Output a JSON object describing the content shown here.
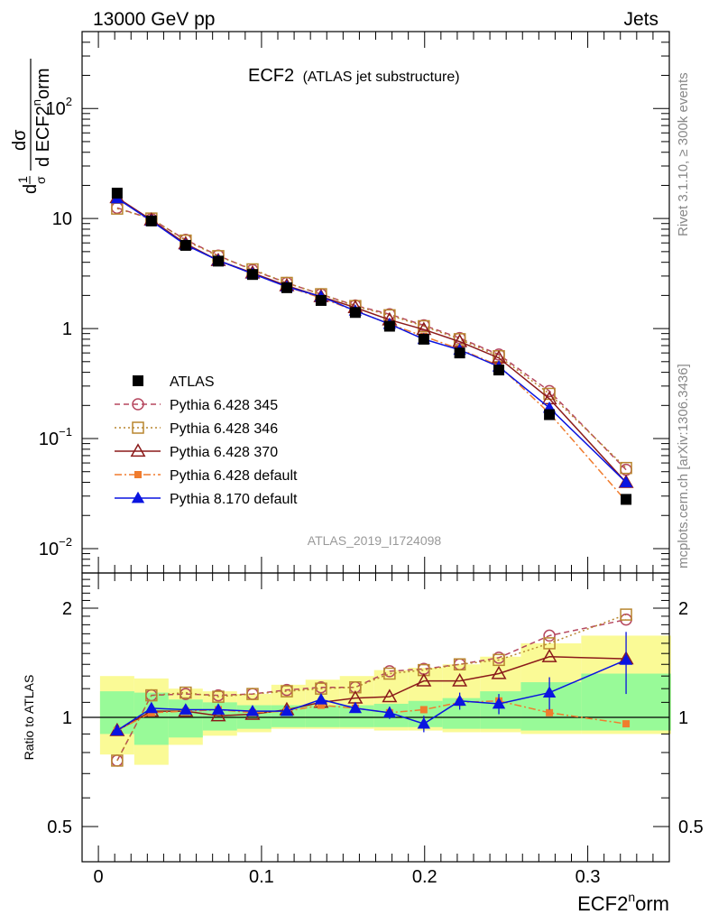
{
  "header": {
    "left": "13000 GeV pp",
    "right": "Jets"
  },
  "plot_title": {
    "main": "ECF2",
    "sub": "(ATLAS jet substructure)"
  },
  "analysis_id": "ATLAS_2019_I1724098",
  "side_labels": {
    "rivet": "Rivet 3.1.10, ≥ 300k events",
    "mcplots": "mcplots.cern.ch [arXiv:1306.3436]"
  },
  "chart_data": [
    {
      "type": "scatter",
      "panel": "main",
      "ylabel": "1/σ dσ/d ECF2^norm",
      "ylabel_parts": {
        "d": "d",
        "one": "1",
        "sigma": "σ",
        "dsigma": "dσ",
        "dvar": "d ECF2",
        "sup": "n",
        "tail": "orm"
      },
      "yscale": "log",
      "ylim": [
        0.006,
        500
      ],
      "xlim": [
        -0.01,
        0.35
      ],
      "y_tick_labels": [
        {
          "value": 0.01,
          "base": "10",
          "exp": "−2"
        },
        {
          "value": 0.1,
          "base": "10",
          "exp": "−1"
        },
        {
          "value": 1,
          "base": "1",
          "exp": ""
        },
        {
          "value": 10,
          "base": "10",
          "exp": ""
        },
        {
          "value": 100,
          "base": "10",
          "exp": "2"
        }
      ],
      "legend_position": "center-left",
      "series": [
        {
          "name": "ATLAS",
          "color": "#000000",
          "marker": "square-filled",
          "x": [
            0.0115,
            0.0325,
            0.0535,
            0.0735,
            0.0945,
            0.1155,
            0.1365,
            0.1575,
            0.1785,
            0.1995,
            0.2215,
            0.2455,
            0.2765,
            0.3235
          ],
          "y": [
            17.0,
            9.5,
            5.7,
            4.1,
            3.1,
            2.35,
            1.8,
            1.4,
            1.05,
            0.8,
            0.6,
            0.42,
            0.165,
            0.028
          ]
        },
        {
          "name": "Pythia 6.428 345",
          "color": "#b5475f",
          "marker": "circle-open",
          "line": "dashed",
          "x": [
            0.0115,
            0.0325,
            0.0535,
            0.0735,
            0.0945,
            0.1155,
            0.1365,
            0.1575,
            0.1785,
            0.1995,
            0.2215,
            0.2455,
            0.2765,
            0.3235
          ],
          "y": [
            12.5,
            9.9,
            6.4,
            4.6,
            3.4,
            2.6,
            2.05,
            1.62,
            1.35,
            1.07,
            0.82,
            0.58,
            0.27,
            0.052
          ]
        },
        {
          "name": "Pythia 6.428 346",
          "color": "#b8862f",
          "marker": "square-open",
          "line": "dotted",
          "x": [
            0.0115,
            0.0325,
            0.0535,
            0.0735,
            0.0945,
            0.1155,
            0.1365,
            0.1575,
            0.1785,
            0.1995,
            0.2215,
            0.2455,
            0.2765,
            0.3235
          ],
          "y": [
            12.3,
            10.0,
            6.3,
            4.55,
            3.45,
            2.6,
            2.05,
            1.6,
            1.32,
            1.05,
            0.8,
            0.56,
            0.255,
            0.054
          ]
        },
        {
          "name": "Pythia 6.428 370",
          "color": "#8b1a1a",
          "marker": "triangle-open",
          "line": "solid",
          "x": [
            0.0115,
            0.0325,
            0.0535,
            0.0735,
            0.0945,
            0.1155,
            0.1365,
            0.1575,
            0.1785,
            0.1995,
            0.2215,
            0.2455,
            0.2765,
            0.3235
          ],
          "y": [
            15.5,
            9.7,
            5.9,
            4.15,
            3.2,
            2.45,
            1.95,
            1.55,
            1.2,
            0.98,
            0.76,
            0.54,
            0.23,
            0.04
          ]
        },
        {
          "name": "Pythia 6.428 default",
          "color": "#f07c2e",
          "marker": "square-filled",
          "line": "dashdot",
          "x": [
            0.0115,
            0.0325,
            0.0535,
            0.0735,
            0.0945,
            0.1155,
            0.1365,
            0.1575,
            0.1785,
            0.1995,
            0.2215,
            0.2455,
            0.2765,
            0.3235
          ],
          "y": [
            15.5,
            9.6,
            5.8,
            4.15,
            3.15,
            2.4,
            1.9,
            1.45,
            1.1,
            0.85,
            0.65,
            0.46,
            0.17,
            0.027
          ]
        },
        {
          "name": "Pythia 8.170 default",
          "color": "#0a14e0",
          "marker": "triangle-filled",
          "line": "solid",
          "x": [
            0.0115,
            0.0325,
            0.0535,
            0.0735,
            0.0945,
            0.1155,
            0.1365,
            0.1575,
            0.1785,
            0.1995,
            0.2215,
            0.2455,
            0.2765,
            0.3235
          ],
          "y": [
            15.2,
            9.5,
            5.75,
            4.15,
            3.15,
            2.4,
            1.95,
            1.45,
            1.1,
            0.8,
            0.64,
            0.45,
            0.19,
            0.04
          ]
        }
      ]
    },
    {
      "type": "scatter",
      "panel": "ratio",
      "ylabel": "Ratio to ATLAS",
      "yscale": "log",
      "ylim": [
        0.4,
        2.5
      ],
      "xlim": [
        -0.01,
        0.35
      ],
      "xlabel": "ECF2^norm",
      "xlabel_parts": {
        "base": "ECF2",
        "sup": "n",
        "tail": "orm"
      },
      "x_tick_labels": [
        "0",
        "0.1",
        "0.2",
        "0.3"
      ],
      "x_ticks": [
        0,
        0.1,
        0.2,
        0.3
      ],
      "y_tick_labels": [
        "0.5",
        "1",
        "2"
      ],
      "y_ticks": [
        0.5,
        1,
        2
      ],
      "reference_line": 1,
      "uncertainty_bands": {
        "bin_edges": [
          0.001,
          0.022,
          0.043,
          0.064,
          0.085,
          0.106,
          0.127,
          0.148,
          0.169,
          0.19,
          0.211,
          0.234,
          0.259,
          0.296,
          0.351
        ],
        "inner": {
          "color": "#98fa98",
          "low": [
            0.9,
            0.84,
            0.88,
            0.92,
            0.93,
            0.94,
            0.94,
            0.94,
            0.94,
            0.94,
            0.93,
            0.93,
            0.92,
            0.92
          ],
          "high": [
            1.18,
            1.17,
            1.12,
            1.1,
            1.08,
            1.08,
            1.08,
            1.08,
            1.09,
            1.11,
            1.13,
            1.18,
            1.25,
            1.32
          ]
        },
        "outer": {
          "color": "#fafa96",
          "low": [
            0.79,
            0.74,
            0.84,
            0.89,
            0.91,
            0.93,
            0.93,
            0.93,
            0.92,
            0.92,
            0.91,
            0.91,
            0.9,
            0.9
          ],
          "high": [
            1.3,
            1.28,
            1.2,
            1.18,
            1.16,
            1.23,
            1.27,
            1.3,
            1.35,
            1.37,
            1.4,
            1.47,
            1.6,
            1.68
          ]
        }
      },
      "series": [
        {
          "name": "Pythia 6.428 345",
          "color": "#b5475f",
          "marker": "circle-open",
          "line": "dashed",
          "x": [
            0.0115,
            0.0325,
            0.0535,
            0.0735,
            0.0945,
            0.1155,
            0.1365,
            0.1575,
            0.1785,
            0.1995,
            0.2215,
            0.2455,
            0.2765,
            0.3235
          ],
          "y": [
            0.76,
            1.15,
            1.16,
            1.15,
            1.16,
            1.19,
            1.21,
            1.21,
            1.34,
            1.36,
            1.4,
            1.46,
            1.68,
            1.86
          ]
        },
        {
          "name": "Pythia 6.428 346",
          "color": "#b8862f",
          "marker": "square-open",
          "line": "dotted",
          "x": [
            0.0115,
            0.0325,
            0.0535,
            0.0735,
            0.0945,
            0.1155,
            0.1365,
            0.1575,
            0.1785,
            0.1995,
            0.2215,
            0.2455,
            0.2765,
            0.3235
          ],
          "y": [
            0.76,
            1.15,
            1.17,
            1.14,
            1.16,
            1.18,
            1.2,
            1.21,
            1.32,
            1.35,
            1.4,
            1.44,
            1.6,
            1.92
          ]
        },
        {
          "name": "Pythia 6.428 370",
          "color": "#8b1a1a",
          "marker": "triangle-open",
          "line": "solid",
          "x": [
            0.0115,
            0.0325,
            0.0535,
            0.0735,
            0.0945,
            0.1155,
            0.1365,
            0.1575,
            0.1785,
            0.1995,
            0.2215,
            0.2455,
            0.2765,
            0.3235
          ],
          "y": [
            0.92,
            1.04,
            1.04,
            1.01,
            1.02,
            1.05,
            1.1,
            1.13,
            1.14,
            1.26,
            1.26,
            1.32,
            1.47,
            1.45
          ]
        },
        {
          "name": "Pythia 6.428 default",
          "color": "#f07c2e",
          "marker": "square-filled",
          "line": "dashdot",
          "x": [
            0.0115,
            0.0325,
            0.0535,
            0.0735,
            0.0945,
            0.1155,
            0.1365,
            0.1575,
            0.1785,
            0.1995,
            0.2215,
            0.2455,
            0.2765,
            0.3235
          ],
          "y": [
            0.92,
            1.03,
            1.04,
            1.05,
            1.03,
            1.04,
            1.08,
            1.06,
            1.03,
            1.05,
            1.1,
            1.11,
            1.03,
            0.96
          ]
        },
        {
          "name": "Pythia 8.170 default",
          "color": "#0a14e0",
          "marker": "triangle-filled",
          "line": "solid",
          "x": [
            0.0115,
            0.0325,
            0.0535,
            0.0735,
            0.0945,
            0.1155,
            0.1365,
            0.1575,
            0.1785,
            0.1995,
            0.2215,
            0.2455,
            0.2765,
            0.3235
          ],
          "y": [
            0.92,
            1.06,
            1.05,
            1.05,
            1.04,
            1.04,
            1.12,
            1.06,
            1.03,
            0.96,
            1.11,
            1.09,
            1.17,
            1.44
          ],
          "err": [
            0.01,
            0.01,
            0.01,
            0.01,
            0.01,
            0.015,
            0.02,
            0.03,
            0.04,
            0.05,
            0.06,
            0.07,
            0.12,
            0.28
          ]
        }
      ]
    }
  ]
}
